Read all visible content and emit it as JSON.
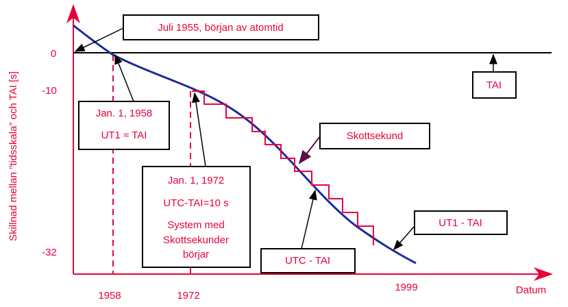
{
  "axes": {
    "y_label": "Skillnad mellan ”tidsskala” och TAI [s]",
    "x_label": "Datum",
    "y_ticks": [
      "0",
      "-10",
      "-32"
    ],
    "x_ticks": [
      "1958",
      "1972",
      "1999"
    ]
  },
  "annotations": {
    "atomtid": "Juli 1955, början av atomtid",
    "tai": "TAI",
    "jan1958": [
      "Jan. 1, 1958",
      "UT1 ≈ TAI"
    ],
    "jan1972": [
      "Jan. 1, 1972",
      "UTC-TAI=10 s",
      "System med",
      "Skottsekunder",
      "börjar"
    ],
    "skottsekund": "Skottsekund",
    "ut1_tai": "UT1 - TAI",
    "utc_tai": "UTC - TAI"
  }
}
